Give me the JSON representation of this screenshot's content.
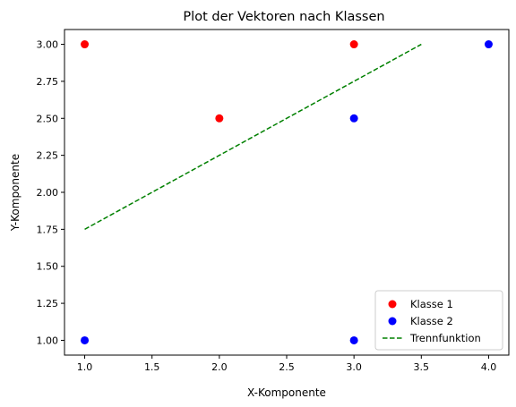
{
  "chart_data": {
    "type": "scatter",
    "title": "Plot der Vektoren nach Klassen",
    "xlabel": "X-Komponente",
    "ylabel": "Y-Komponente",
    "xlim": [
      0.85,
      4.15
    ],
    "ylim": [
      0.9,
      3.1
    ],
    "xticks": [
      1.0,
      1.5,
      2.0,
      2.5,
      3.0,
      3.5,
      4.0
    ],
    "xtick_labels": [
      "1.0",
      "1.5",
      "2.0",
      "2.5",
      "3.0",
      "3.5",
      "4.0"
    ],
    "yticks": [
      1.0,
      1.25,
      1.5,
      1.75,
      2.0,
      2.25,
      2.5,
      2.75,
      3.0
    ],
    "ytick_labels": [
      "1.00",
      "1.25",
      "1.50",
      "1.75",
      "2.00",
      "2.25",
      "2.50",
      "2.75",
      "3.00"
    ],
    "grid": false,
    "legend_position": "lower right",
    "series": [
      {
        "name": "Klasse 1",
        "kind": "scatter",
        "color": "#ff0000",
        "points": [
          [
            1,
            3
          ],
          [
            2,
            2.5
          ],
          [
            3,
            3
          ]
        ]
      },
      {
        "name": "Klasse 2",
        "kind": "scatter",
        "color": "#0000ff",
        "points": [
          [
            1,
            1
          ],
          [
            3,
            2.5
          ],
          [
            3,
            1
          ],
          [
            4,
            3
          ]
        ]
      },
      {
        "name": "Trennfunktion",
        "kind": "line",
        "style": "dashed",
        "color": "#008000",
        "points": [
          [
            1,
            1.75
          ],
          [
            3.5,
            3.0
          ]
        ]
      }
    ]
  }
}
